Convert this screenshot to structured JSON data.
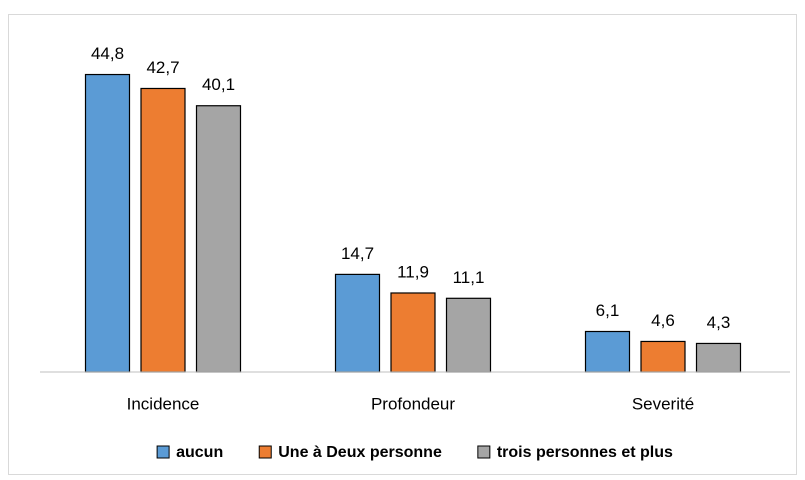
{
  "chart_data": {
    "type": "bar",
    "categories": [
      "Incidence",
      "Profondeur",
      "Severité"
    ],
    "series": [
      {
        "name": "aucun",
        "color": "#5b9bd5",
        "values": [
          44.8,
          14.7,
          6.1
        ],
        "value_labels": [
          "44,8",
          "14,7",
          "6,1"
        ]
      },
      {
        "name": "Une à Deux personne",
        "color": "#ed7d31",
        "values": [
          42.7,
          11.9,
          4.6
        ],
        "value_labels": [
          "42,7",
          "11,9",
          "4,6"
        ]
      },
      {
        "name": "trois personnes et plus",
        "color": "#a5a5a5",
        "values": [
          40.1,
          11.1,
          4.3
        ],
        "value_labels": [
          "40,1",
          "11,1",
          "4,3"
        ]
      }
    ],
    "ylim": [
      0,
      50
    ],
    "legend": "bottom"
  }
}
